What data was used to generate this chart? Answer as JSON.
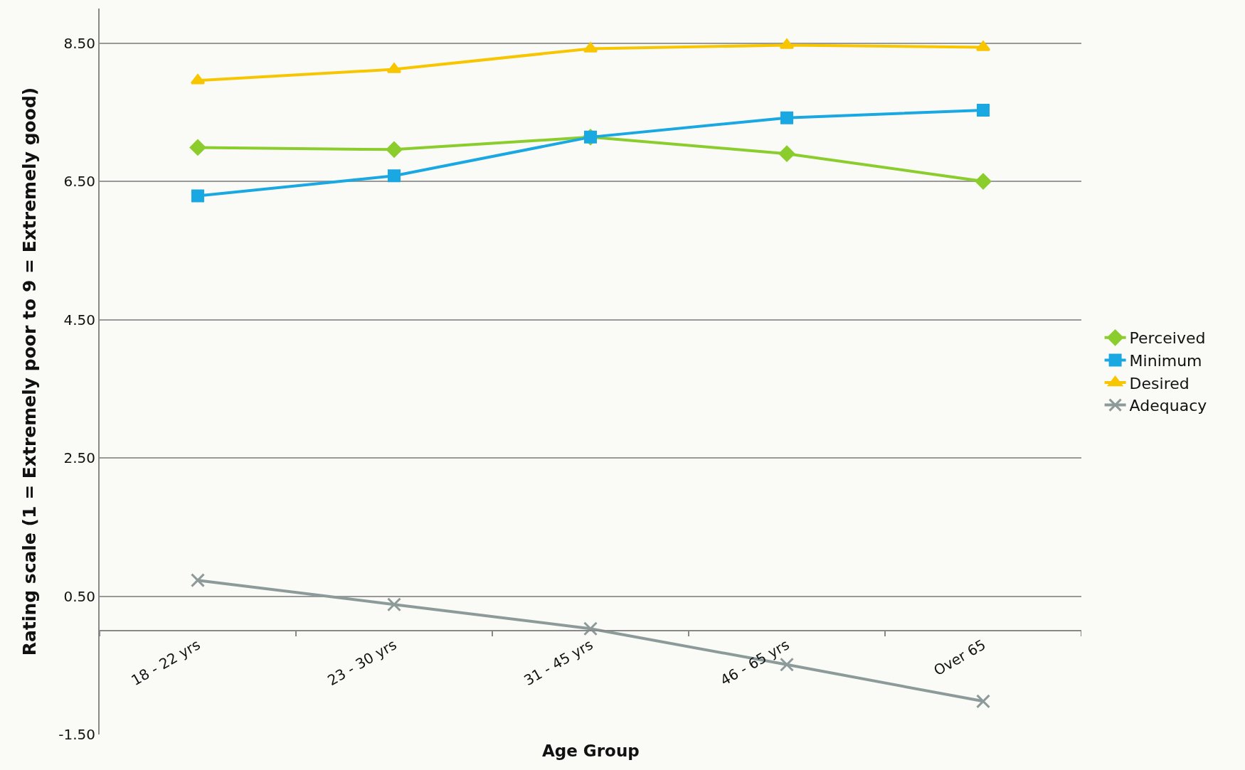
{
  "chart_data": {
    "type": "line",
    "xlabel": "Age Group",
    "ylabel": "Rating scale (1 = Extremely poor to 9 = Extremely good)",
    "categories": [
      "18 - 22 yrs",
      "23 - 30 yrs",
      "31 - 45 yrs",
      "46 - 65 yrs",
      "Over 65"
    ],
    "series": [
      {
        "name": "Perceived",
        "color": "#8acd2c",
        "marker": "diamond",
        "values": [
          6.99,
          6.96,
          7.14,
          6.9,
          6.5
        ]
      },
      {
        "name": "Minimum",
        "color": "#1aa8e2",
        "marker": "square",
        "values": [
          6.29,
          6.58,
          7.14,
          7.42,
          7.53
        ]
      },
      {
        "name": "Desired",
        "color": "#f7c600",
        "marker": "triangle",
        "values": [
          7.96,
          8.12,
          8.42,
          8.47,
          8.44
        ]
      },
      {
        "name": "Adequacy",
        "color": "#8d9a9a",
        "marker": "cross",
        "values": [
          0.73,
          0.38,
          0.03,
          -0.49,
          -1.02
        ]
      }
    ],
    "ylim": [
      -1.5,
      9.0
    ],
    "yticks": [
      {
        "value": -1.5,
        "label": "-1.50"
      },
      {
        "value": 0.5,
        "label": "0.50"
      },
      {
        "value": 2.5,
        "label": "2.50"
      },
      {
        "value": 4.5,
        "label": "4.50"
      },
      {
        "value": 6.5,
        "label": "6.50"
      },
      {
        "value": 8.5,
        "label": "8.50"
      }
    ],
    "grid": "y",
    "legend": "right",
    "line_style": "solid"
  }
}
